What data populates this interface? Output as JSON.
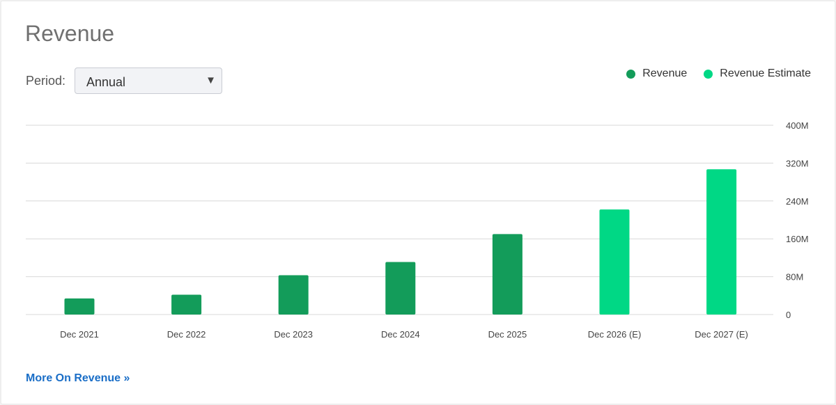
{
  "header": {
    "title": "Revenue",
    "period_label": "Period:",
    "period_value": "Annual",
    "dropdown_icon": "chevron-down-icon"
  },
  "colors": {
    "revenue": "#139c5a",
    "estimate": "#00d885",
    "grid": "#d8d8d8",
    "tick_text": "#444444",
    "link": "#1a6ec7"
  },
  "chart_data": {
    "type": "bar",
    "title": "Revenue",
    "categories": [
      "Dec 2021",
      "Dec 2022",
      "Dec 2023",
      "Dec 2024",
      "Dec 2025",
      "Dec 2026 (E)",
      "Dec 2027 (E)"
    ],
    "series": [
      {
        "name": "Revenue",
        "values": [
          34,
          42,
          83,
          111,
          170,
          null,
          null
        ]
      },
      {
        "name": "Revenue Estimate",
        "values": [
          null,
          null,
          null,
          null,
          null,
          222,
          307
        ]
      }
    ],
    "ylim": [
      0,
      400
    ],
    "yticks": [
      0,
      80,
      160,
      240,
      320,
      400
    ],
    "ytick_labels": [
      "0",
      "80M",
      "160M",
      "240M",
      "320M",
      "400M"
    ],
    "y_axis_position": "right",
    "grid": true,
    "legend_position": "top-right"
  },
  "footer": {
    "more_link": "More On Revenue »"
  }
}
